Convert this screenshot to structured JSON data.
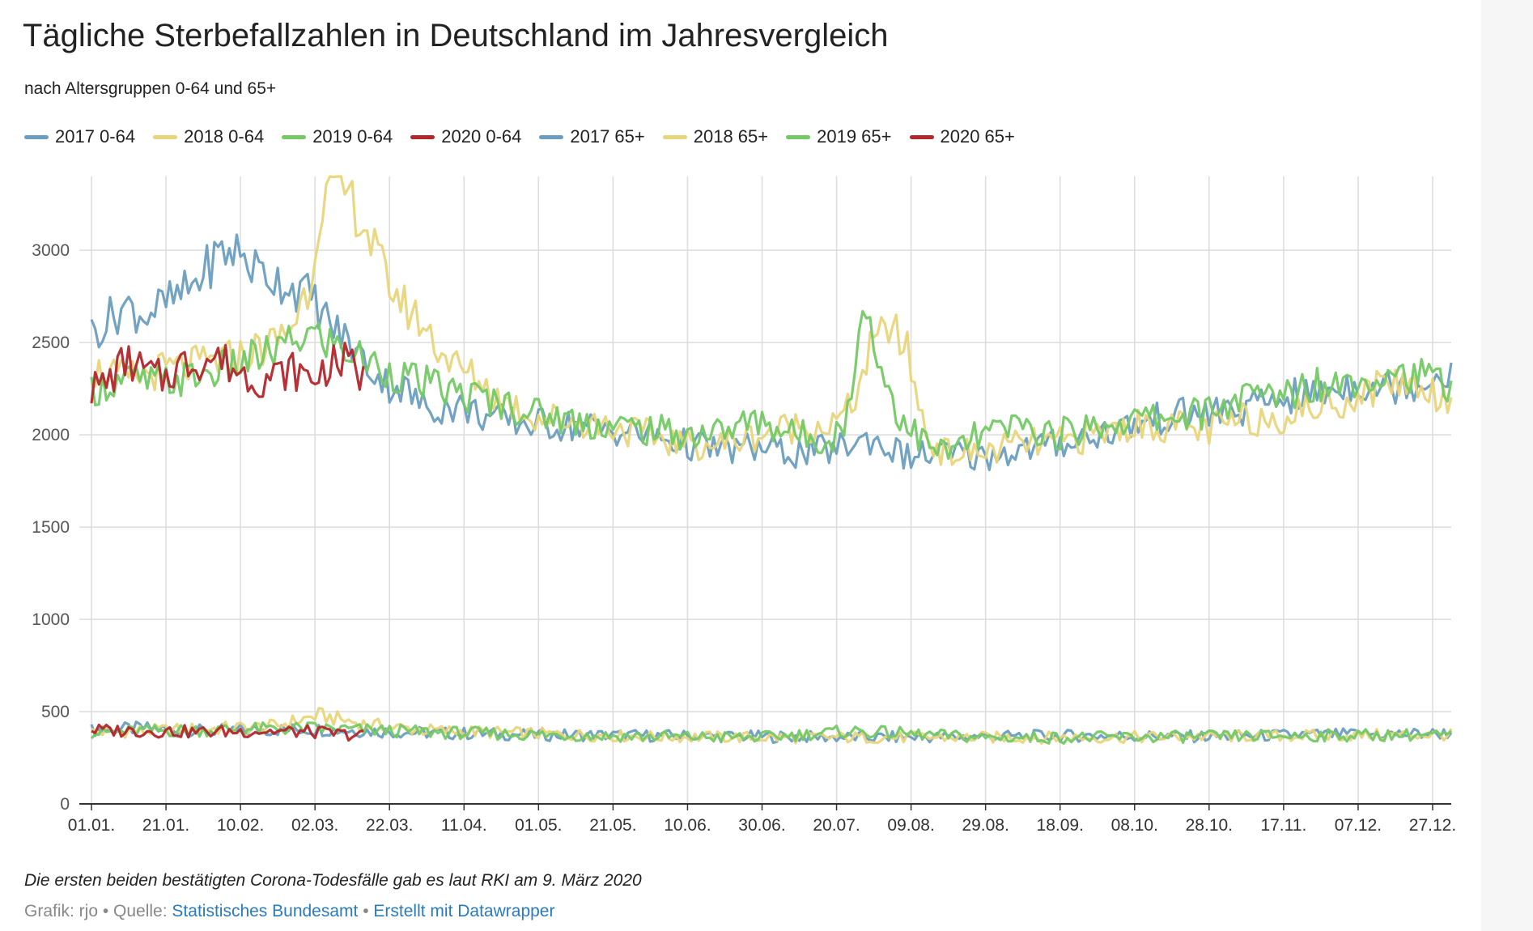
{
  "header": {
    "title": "Tägliche Sterbefallzahlen in Deutschland im Jahresvergleich",
    "subtitle": "nach Altersgruppen 0-64 und 65+"
  },
  "legend": [
    {
      "label": "2017 0-64",
      "color": "#6a9ec0"
    },
    {
      "label": "2018 0-64",
      "color": "#e8d57a"
    },
    {
      "label": "2019 0-64",
      "color": "#74c965"
    },
    {
      "label": "2020 0-64",
      "color": "#b3262c"
    },
    {
      "label": "2017 65+",
      "color": "#6a9ec0"
    },
    {
      "label": "2018 65+",
      "color": "#e8d57a"
    },
    {
      "label": "2019 65+",
      "color": "#74c965"
    },
    {
      "label": "2020 65+",
      "color": "#b3262c"
    }
  ],
  "chart_data": {
    "type": "line",
    "x_axis": {
      "unit": "day of year",
      "range": [
        1,
        366
      ],
      "ticks": [
        {
          "day": 1,
          "label": "01.01."
        },
        {
          "day": 21,
          "label": "21.01."
        },
        {
          "day": 41,
          "label": "10.02."
        },
        {
          "day": 61,
          "label": "02.03."
        },
        {
          "day": 81,
          "label": "22.03."
        },
        {
          "day": 101,
          "label": "11.04."
        },
        {
          "day": 121,
          "label": "01.05."
        },
        {
          "day": 141,
          "label": "21.05."
        },
        {
          "day": 161,
          "label": "10.06."
        },
        {
          "day": 181,
          "label": "30.06."
        },
        {
          "day": 201,
          "label": "20.07."
        },
        {
          "day": 221,
          "label": "09.08."
        },
        {
          "day": 241,
          "label": "29.08."
        },
        {
          "day": 261,
          "label": "18.09."
        },
        {
          "day": 281,
          "label": "08.10."
        },
        {
          "day": 301,
          "label": "28.10."
        },
        {
          "day": 321,
          "label": "17.11."
        },
        {
          "day": 341,
          "label": "07.12."
        },
        {
          "day": 361,
          "label": "27.12."
        }
      ]
    },
    "y_axis": {
      "range": [
        0,
        3400
      ],
      "ticks": [
        0,
        500,
        1000,
        1500,
        2000,
        2500,
        3000
      ]
    },
    "grid": true,
    "legend_position": "top-left",
    "series": [
      {
        "name": "2017 0-64",
        "color": "#6a9ec0",
        "x": [
          1,
          15,
          30,
          60,
          90,
          120,
          150,
          180,
          210,
          240,
          270,
          300,
          330,
          360,
          366
        ],
        "values": [
          400,
          410,
          395,
          405,
          385,
          375,
          370,
          365,
          360,
          365,
          370,
          365,
          375,
          380,
          385
        ]
      },
      {
        "name": "2018 0-64",
        "color": "#e8d57a",
        "x": [
          1,
          15,
          30,
          50,
          62,
          75,
          90,
          120,
          150,
          180,
          210,
          240,
          270,
          300,
          330,
          360,
          366
        ],
        "values": [
          390,
          395,
          405,
          420,
          480,
          430,
          400,
          380,
          365,
          360,
          360,
          360,
          360,
          365,
          370,
          375,
          375
        ]
      },
      {
        "name": "2019 0-64",
        "color": "#74c965",
        "x": [
          1,
          15,
          30,
          60,
          90,
          120,
          150,
          180,
          205,
          240,
          270,
          300,
          330,
          360,
          366
        ],
        "values": [
          385,
          395,
          400,
          410,
          390,
          375,
          365,
          360,
          395,
          360,
          360,
          365,
          370,
          375,
          365
        ]
      },
      {
        "name": "2020 0-64",
        "color": "#b3262c",
        "x": [
          1,
          15,
          30,
          45,
          60,
          74
        ],
        "values": [
          400,
          395,
          390,
          395,
          390,
          370
        ]
      },
      {
        "name": "2017 65+",
        "color": "#6a9ec0",
        "x": [
          1,
          10,
          15,
          25,
          30,
          35,
          40,
          45,
          50,
          55,
          60,
          65,
          70,
          75,
          80,
          85,
          90,
          100,
          110,
          120,
          130,
          140,
          150,
          160,
          170,
          180,
          190,
          200,
          210,
          220,
          230,
          240,
          250,
          260,
          270,
          280,
          290,
          300,
          310,
          320,
          330,
          340,
          350,
          360,
          366
        ],
        "values": [
          2550,
          2700,
          2650,
          2750,
          2850,
          2980,
          3000,
          2900,
          2850,
          2800,
          2750,
          2600,
          2500,
          2380,
          2280,
          2250,
          2150,
          2150,
          2080,
          2060,
          2050,
          2030,
          2000,
          1950,
          1920,
          1930,
          1900,
          1920,
          1980,
          1880,
          1900,
          1880,
          1920,
          1950,
          2000,
          2050,
          2100,
          2120,
          2130,
          2200,
          2220,
          2280,
          2260,
          2300,
          2360
        ]
      },
      {
        "name": "2018 65+",
        "color": "#e8d57a",
        "x": [
          1,
          10,
          20,
          30,
          40,
          50,
          55,
          60,
          62,
          65,
          70,
          75,
          80,
          85,
          90,
          95,
          100,
          105,
          110,
          120,
          130,
          140,
          150,
          160,
          170,
          180,
          190,
          200,
          205,
          210,
          215,
          220,
          225,
          230,
          240,
          250,
          260,
          270,
          280,
          290,
          300,
          310,
          320,
          330,
          340,
          350,
          360,
          366
        ],
        "values": [
          2350,
          2300,
          2350,
          2380,
          2420,
          2500,
          2600,
          2850,
          3200,
          3350,
          3300,
          3100,
          2850,
          2700,
          2600,
          2450,
          2350,
          2300,
          2200,
          2100,
          2080,
          2050,
          2000,
          1950,
          1950,
          2000,
          2050,
          2050,
          2150,
          2450,
          2600,
          2450,
          2000,
          1900,
          1900,
          1950,
          1950,
          2000,
          2050,
          2050,
          2020,
          2080,
          2100,
          2150,
          2200,
          2300,
          2250,
          2180
        ]
      },
      {
        "name": "2019 65+",
        "color": "#74c965",
        "x": [
          1,
          10,
          20,
          30,
          40,
          50,
          55,
          60,
          65,
          70,
          75,
          80,
          90,
          100,
          110,
          120,
          130,
          140,
          150,
          160,
          170,
          180,
          190,
          200,
          205,
          208,
          212,
          218,
          225,
          230,
          240,
          250,
          260,
          270,
          280,
          290,
          300,
          310,
          320,
          330,
          340,
          350,
          360,
          366
        ],
        "values": [
          2250,
          2300,
          2280,
          2320,
          2380,
          2450,
          2500,
          2550,
          2500,
          2450,
          2400,
          2350,
          2280,
          2220,
          2180,
          2120,
          2080,
          2050,
          2030,
          2000,
          2020,
          2080,
          2000,
          1980,
          2150,
          2780,
          2400,
          2100,
          1950,
          1900,
          2000,
          2050,
          2000,
          2050,
          2080,
          2100,
          2120,
          2200,
          2220,
          2280,
          2300,
          2350,
          2300,
          2280
        ]
      },
      {
        "name": "2020 65+",
        "color": "#b3262c",
        "x": [
          1,
          5,
          10,
          15,
          20,
          25,
          30,
          35,
          40,
          45,
          50,
          55,
          60,
          65,
          70,
          74
        ],
        "values": [
          2250,
          2280,
          2400,
          2350,
          2300,
          2380,
          2400,
          2420,
          2350,
          2300,
          2320,
          2350,
          2300,
          2380,
          2400,
          2300
        ]
      }
    ]
  },
  "footer": {
    "note": "Die ersten beiden bestätigten Corona-Todesfälle gab es laut RKI am 9. März 2020",
    "credit_prefix": "Grafik: rjo • Quelle: ",
    "source_link": "Statistisches Bundesamt",
    "separator": " • ",
    "datawrapper_link": "Erstellt mit Datawrapper"
  }
}
